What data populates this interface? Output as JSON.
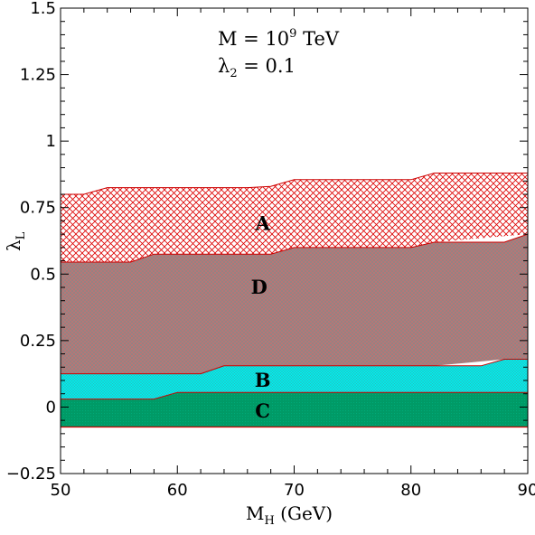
{
  "chart_data": {
    "type": "area",
    "xlabel": "M",
    "xlabel_sub": "H",
    "xlabel_unit": " (GeV)",
    "ylabel": "λ",
    "ylabel_sub": "L",
    "xlim": [
      50,
      90
    ],
    "ylim": [
      -0.25,
      1.5
    ],
    "xticks": [
      50,
      60,
      70,
      80,
      90
    ],
    "xtick_labels": [
      "50",
      "60",
      "70",
      "80",
      "90"
    ],
    "yticks": [
      -0.25,
      0,
      0.25,
      0.5,
      0.75,
      1,
      1.25,
      1.5
    ],
    "ytick_labels": [
      "−0.25",
      "0",
      "0.25",
      "0.5",
      "0.75",
      "1",
      "1.25",
      "1.5"
    ],
    "annotations": {
      "line1_prefix": "M = 10",
      "line1_exp": "9",
      "line1_suffix": " TeV",
      "line2_symbol": "λ",
      "line2_sub": "2",
      "line2_rest": " = 0.1"
    },
    "regions": [
      {
        "name": "A",
        "label_at": [
          67.3,
          0.69
        ],
        "color": "#dd0000",
        "pattern": "crosshatch",
        "x": [
          50,
          52,
          54,
          56,
          60,
          66,
          68,
          70,
          80,
          82,
          90
        ],
        "upper": [
          0.8,
          0.8,
          0.825,
          0.825,
          0.825,
          0.825,
          0.83,
          0.855,
          0.855,
          0.88,
          0.88
        ],
        "lower": [
          0.545,
          0.545,
          0.545,
          0.545,
          0.575,
          0.575,
          0.575,
          0.6,
          0.6,
          0.62,
          0.65
        ]
      },
      {
        "name": "D",
        "label_at": [
          67.0,
          0.45
        ],
        "color": "#a08888",
        "pattern": "dense-crosshatch",
        "x": [
          50,
          56,
          58,
          60,
          62,
          64,
          66,
          68,
          70,
          80,
          82,
          88,
          90
        ],
        "upper": [
          0.545,
          0.545,
          0.575,
          0.575,
          0.575,
          0.575,
          0.575,
          0.575,
          0.6,
          0.6,
          0.62,
          0.62,
          0.65
        ],
        "lower": [
          0.125,
          0.125,
          0.125,
          0.125,
          0.125,
          0.155,
          0.155,
          0.155,
          0.155,
          0.155,
          0.155,
          0.18,
          0.18
        ]
      },
      {
        "name": "B",
        "label_at": [
          67.3,
          0.1
        ],
        "color": "#00e5e5",
        "pattern": "dots",
        "x": [
          50,
          58,
          60,
          62,
          64,
          86,
          88,
          90
        ],
        "upper": [
          0.125,
          0.125,
          0.125,
          0.125,
          0.155,
          0.155,
          0.18,
          0.18
        ],
        "lower": [
          0.03,
          0.03,
          0.055,
          0.055,
          0.055,
          0.055,
          0.055,
          0.055
        ]
      },
      {
        "name": "C",
        "label_at": [
          67.3,
          -0.015
        ],
        "color": "#009966",
        "pattern": "solid",
        "x": [
          50,
          58,
          60,
          90
        ],
        "upper": [
          0.03,
          0.03,
          0.055,
          0.055
        ],
        "lower": [
          -0.075,
          -0.075,
          -0.075,
          -0.075
        ]
      }
    ],
    "boundary_color": "#cc0000"
  }
}
